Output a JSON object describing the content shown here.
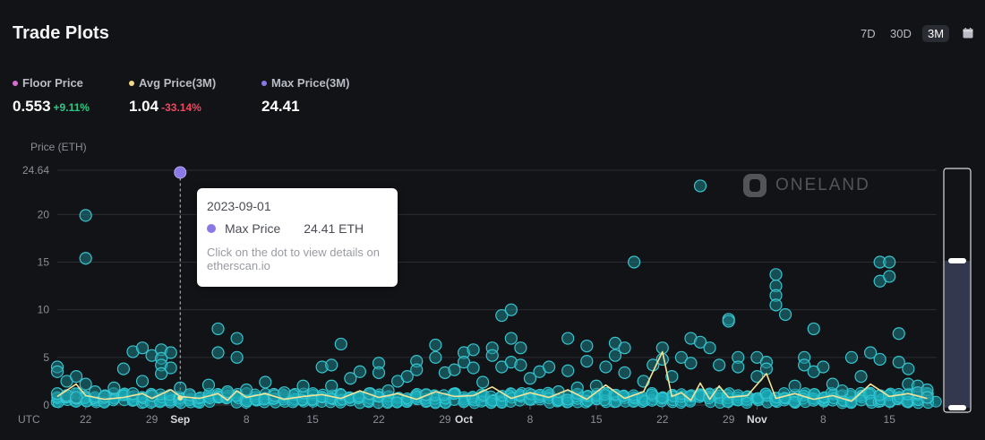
{
  "header": {
    "title": "Trade Plots",
    "ranges": [
      "7D",
      "30D",
      "3M"
    ],
    "active_range": "3M"
  },
  "stats": [
    {
      "label": "Floor Price",
      "value": "0.553",
      "change": "+9.11%",
      "change_dir": "up",
      "color": "#d76bd0"
    },
    {
      "label": "Avg Price(3M)",
      "value": "1.04",
      "change": "-33.14%",
      "change_dir": "down",
      "color": "#f2d98a"
    },
    {
      "label": "Max Price(3M)",
      "value": "24.41",
      "change": "",
      "change_dir": "",
      "color": "#8a78e6"
    }
  ],
  "tooltip": {
    "date": "2023-09-01",
    "series": "Max Price",
    "value": "24.41 ETH",
    "hint": "Click on the dot to view details on etherscan.io"
  },
  "watermark": "ONELAND",
  "chart_data": {
    "type": "scatter",
    "ylabel": "Price (ETH)",
    "timezone_label": "UTC",
    "ylim": [
      0,
      24.64
    ],
    "y_ticks": [
      0,
      5,
      10,
      15,
      20,
      24.64
    ],
    "x_range": [
      "2023-08-19",
      "2023-11-20"
    ],
    "x_ticks": [
      {
        "date": "2023-08-22",
        "label": "22"
      },
      {
        "date": "2023-08-29",
        "label": "29"
      },
      {
        "date": "2023-09-01",
        "label": "Sep"
      },
      {
        "date": "2023-09-08",
        "label": "8"
      },
      {
        "date": "2023-09-15",
        "label": "15"
      },
      {
        "date": "2023-09-22",
        "label": "22"
      },
      {
        "date": "2023-09-29",
        "label": "29"
      },
      {
        "date": "2023-10-01",
        "label": "Oct"
      },
      {
        "date": "2023-10-08",
        "label": "8"
      },
      {
        "date": "2023-10-15",
        "label": "15"
      },
      {
        "date": "2023-10-22",
        "label": "22"
      },
      {
        "date": "2023-10-29",
        "label": "29"
      },
      {
        "date": "2023-11-01",
        "label": "Nov"
      },
      {
        "date": "2023-11-08",
        "label": "8"
      },
      {
        "date": "2023-11-15",
        "label": "15"
      }
    ],
    "grid": true,
    "highlight_point": {
      "date": "2023-09-01",
      "value": 24.41
    },
    "trades": [
      [
        "2023-08-19",
        4.0
      ],
      [
        "2023-08-19",
        3.5
      ],
      [
        "2023-08-19",
        1.2
      ],
      [
        "2023-08-20",
        2.5
      ],
      [
        "2023-08-20",
        1.0
      ],
      [
        "2023-08-21",
        0.8
      ],
      [
        "2023-08-21",
        3.0
      ],
      [
        "2023-08-22",
        19.9
      ],
      [
        "2023-08-22",
        15.4
      ],
      [
        "2023-08-22",
        2.2
      ],
      [
        "2023-08-23",
        1.4
      ],
      [
        "2023-08-24",
        0.9
      ],
      [
        "2023-08-25",
        1.8
      ],
      [
        "2023-08-26",
        3.8
      ],
      [
        "2023-08-27",
        5.6
      ],
      [
        "2023-08-27",
        1.2
      ],
      [
        "2023-08-28",
        6.0
      ],
      [
        "2023-08-28",
        2.5
      ],
      [
        "2023-08-29",
        5.2
      ],
      [
        "2023-08-29",
        1.0
      ],
      [
        "2023-08-30",
        5.8
      ],
      [
        "2023-08-30",
        4.9
      ],
      [
        "2023-08-30",
        4.2
      ],
      [
        "2023-08-30",
        3.3
      ],
      [
        "2023-08-31",
        5.5
      ],
      [
        "2023-08-31",
        3.9
      ],
      [
        "2023-09-01",
        1.8
      ],
      [
        "2023-09-02",
        1.1
      ],
      [
        "2023-09-04",
        2.1
      ],
      [
        "2023-09-05",
        8.0
      ],
      [
        "2023-09-05",
        5.5
      ],
      [
        "2023-09-06",
        1.4
      ],
      [
        "2023-09-07",
        7.0
      ],
      [
        "2023-09-07",
        5.0
      ],
      [
        "2023-09-08",
        1.6
      ],
      [
        "2023-09-10",
        2.4
      ],
      [
        "2023-09-11",
        1.0
      ],
      [
        "2023-09-12",
        1.3
      ],
      [
        "2023-09-14",
        2.0
      ],
      [
        "2023-09-16",
        4.0
      ],
      [
        "2023-09-17",
        4.2
      ],
      [
        "2023-09-17",
        2.0
      ],
      [
        "2023-09-18",
        6.4
      ],
      [
        "2023-09-19",
        2.8
      ],
      [
        "2023-09-20",
        3.5
      ],
      [
        "2023-09-21",
        1.2
      ],
      [
        "2023-09-22",
        4.4
      ],
      [
        "2023-09-22",
        3.4
      ],
      [
        "2023-09-23",
        1.5
      ],
      [
        "2023-09-24",
        2.5
      ],
      [
        "2023-09-25",
        3.0
      ],
      [
        "2023-09-26",
        4.6
      ],
      [
        "2023-09-26",
        3.7
      ],
      [
        "2023-09-27",
        1.1
      ],
      [
        "2023-09-28",
        6.3
      ],
      [
        "2023-09-28",
        5.0
      ],
      [
        "2023-09-29",
        3.4
      ],
      [
        "2023-09-30",
        3.7
      ],
      [
        "2023-10-01",
        5.5
      ],
      [
        "2023-10-01",
        4.5
      ],
      [
        "2023-10-02",
        5.8
      ],
      [
        "2023-10-02",
        3.9
      ],
      [
        "2023-10-03",
        2.4
      ],
      [
        "2023-10-04",
        6.0
      ],
      [
        "2023-10-04",
        5.2
      ],
      [
        "2023-10-05",
        9.4
      ],
      [
        "2023-10-05",
        4.0
      ],
      [
        "2023-10-06",
        10.0
      ],
      [
        "2023-10-06",
        7.0
      ],
      [
        "2023-10-06",
        4.5
      ],
      [
        "2023-10-07",
        6.0
      ],
      [
        "2023-10-07",
        4.2
      ],
      [
        "2023-10-08",
        2.8
      ],
      [
        "2023-10-09",
        3.5
      ],
      [
        "2023-10-10",
        4.0
      ],
      [
        "2023-10-11",
        1.4
      ],
      [
        "2023-10-12",
        7.0
      ],
      [
        "2023-10-12",
        3.6
      ],
      [
        "2023-10-13",
        1.8
      ],
      [
        "2023-10-14",
        6.2
      ],
      [
        "2023-10-14",
        4.6
      ],
      [
        "2023-10-15",
        2.0
      ],
      [
        "2023-10-16",
        4.0
      ],
      [
        "2023-10-17",
        6.5
      ],
      [
        "2023-10-17",
        5.2
      ],
      [
        "2023-10-18",
        6.0
      ],
      [
        "2023-10-18",
        3.4
      ],
      [
        "2023-10-19",
        15.0
      ],
      [
        "2023-10-20",
        2.5
      ],
      [
        "2023-10-21",
        4.2
      ],
      [
        "2023-10-22",
        6.0
      ],
      [
        "2023-10-22",
        4.8
      ],
      [
        "2023-10-23",
        3.0
      ],
      [
        "2023-10-24",
        5.0
      ],
      [
        "2023-10-25",
        7.0
      ],
      [
        "2023-10-25",
        4.4
      ],
      [
        "2023-10-26",
        6.6
      ],
      [
        "2023-10-26",
        23.0
      ],
      [
        "2023-10-27",
        6.0
      ],
      [
        "2023-10-28",
        4.2
      ],
      [
        "2023-10-29",
        9.0
      ],
      [
        "2023-10-29",
        8.8
      ],
      [
        "2023-10-30",
        5.0
      ],
      [
        "2023-10-30",
        4.0
      ],
      [
        "2023-11-01",
        5.0
      ],
      [
        "2023-11-01",
        3.0
      ],
      [
        "2023-11-02",
        4.5
      ],
      [
        "2023-11-02",
        3.8
      ],
      [
        "2023-11-03",
        13.7
      ],
      [
        "2023-11-03",
        12.5
      ],
      [
        "2023-11-03",
        11.5
      ],
      [
        "2023-11-03",
        10.5
      ],
      [
        "2023-11-04",
        9.5
      ],
      [
        "2023-11-05",
        2.0
      ],
      [
        "2023-11-06",
        5.0
      ],
      [
        "2023-11-06",
        4.2
      ],
      [
        "2023-11-07",
        8.0
      ],
      [
        "2023-11-07",
        3.5
      ],
      [
        "2023-11-08",
        4.0
      ],
      [
        "2023-11-09",
        2.2
      ],
      [
        "2023-11-10",
        1.5
      ],
      [
        "2023-11-11",
        5.0
      ],
      [
        "2023-11-12",
        3.0
      ],
      [
        "2023-11-13",
        5.5
      ],
      [
        "2023-11-14",
        15.0
      ],
      [
        "2023-11-14",
        13.0
      ],
      [
        "2023-11-14",
        4.8
      ],
      [
        "2023-11-15",
        15.0
      ],
      [
        "2023-11-15",
        13.5
      ],
      [
        "2023-11-16",
        7.5
      ],
      [
        "2023-11-16",
        4.5
      ],
      [
        "2023-11-17",
        3.8
      ],
      [
        "2023-11-17",
        2.2
      ],
      [
        "2023-11-18",
        2.0
      ],
      [
        "2023-11-18",
        1.3
      ],
      [
        "2023-11-19",
        1.6
      ],
      [
        "2023-11-19",
        0.8
      ]
    ],
    "avg_line": [
      [
        "2023-08-19",
        0.9
      ],
      [
        "2023-08-21",
        2.2
      ],
      [
        "2023-08-22",
        1.0
      ],
      [
        "2023-08-24",
        0.6
      ],
      [
        "2023-08-26",
        0.8
      ],
      [
        "2023-08-28",
        1.2
      ],
      [
        "2023-08-29",
        0.7
      ],
      [
        "2023-08-31",
        1.6
      ],
      [
        "2023-09-01",
        0.9
      ],
      [
        "2023-09-03",
        0.7
      ],
      [
        "2023-09-05",
        1.2
      ],
      [
        "2023-09-06",
        0.5
      ],
      [
        "2023-09-07",
        1.5
      ],
      [
        "2023-09-08",
        0.8
      ],
      [
        "2023-09-10",
        1.2
      ],
      [
        "2023-09-12",
        0.6
      ],
      [
        "2023-09-14",
        0.9
      ],
      [
        "2023-09-16",
        1.1
      ],
      [
        "2023-09-18",
        0.7
      ],
      [
        "2023-09-20",
        1.5
      ],
      [
        "2023-09-22",
        0.8
      ],
      [
        "2023-09-24",
        1.2
      ],
      [
        "2023-09-26",
        0.6
      ],
      [
        "2023-09-28",
        1.4
      ],
      [
        "2023-09-30",
        0.9
      ],
      [
        "2023-10-02",
        1.0
      ],
      [
        "2023-10-04",
        1.9
      ],
      [
        "2023-10-06",
        0.7
      ],
      [
        "2023-10-08",
        1.3
      ],
      [
        "2023-10-10",
        0.8
      ],
      [
        "2023-10-12",
        1.6
      ],
      [
        "2023-10-14",
        0.6
      ],
      [
        "2023-10-16",
        2.1
      ],
      [
        "2023-10-18",
        0.7
      ],
      [
        "2023-10-20",
        1.4
      ],
      [
        "2023-10-22",
        5.6
      ],
      [
        "2023-10-23",
        0.9
      ],
      [
        "2023-10-24",
        1.3
      ],
      [
        "2023-10-25",
        0.5
      ],
      [
        "2023-10-26",
        2.3
      ],
      [
        "2023-10-27",
        0.6
      ],
      [
        "2023-10-28",
        2.0
      ],
      [
        "2023-10-29",
        0.8
      ],
      [
        "2023-10-31",
        1.0
      ],
      [
        "2023-11-02",
        3.3
      ],
      [
        "2023-11-03",
        0.7
      ],
      [
        "2023-11-05",
        1.2
      ],
      [
        "2023-11-07",
        0.6
      ],
      [
        "2023-11-09",
        1.0
      ],
      [
        "2023-11-11",
        0.4
      ],
      [
        "2023-11-13",
        2.2
      ],
      [
        "2023-11-15",
        0.9
      ],
      [
        "2023-11-17",
        1.2
      ],
      [
        "2023-11-19",
        0.7
      ]
    ]
  }
}
